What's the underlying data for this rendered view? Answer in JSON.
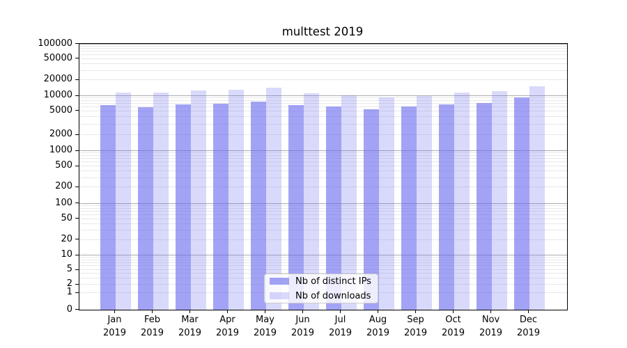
{
  "chart_data": {
    "type": "bar",
    "title": "multtest 2019",
    "months": [
      "Jan",
      "Feb",
      "Mar",
      "Apr",
      "May",
      "Jun",
      "Jul",
      "Aug",
      "Sep",
      "Oct",
      "Nov",
      "Dec"
    ],
    "year": "2019",
    "series": [
      {
        "name": "Nb of distinct IPs",
        "color": "rgba(102,102,238,0.6)",
        "values": [
          6500,
          5800,
          6700,
          6800,
          7700,
          6400,
          6000,
          5300,
          6100,
          6600,
          7200,
          9300
        ]
      },
      {
        "name": "Nb of downloads",
        "color": "rgba(102,102,238,0.25)",
        "values": [
          11400,
          11300,
          12500,
          12800,
          14300,
          11000,
          10300,
          9200,
          9900,
          11400,
          12300,
          15200
        ]
      }
    ],
    "y_ticks": [
      0,
      1,
      2,
      5,
      10,
      20,
      50,
      100,
      200,
      500,
      1000,
      2000,
      5000,
      10000,
      20000,
      50000,
      100000
    ],
    "ylim": [
      0,
      100000
    ],
    "yscale": "log-with-zero",
    "xlabel": "",
    "ylabel": "",
    "grid": "both",
    "legend_position": "lower center"
  },
  "colors": {
    "bar_base": "#6666ee",
    "grid_major": "#ababab",
    "grid_minor": "#e8e8e8",
    "axis": "#000000",
    "legend_border": "#cccccc"
  }
}
